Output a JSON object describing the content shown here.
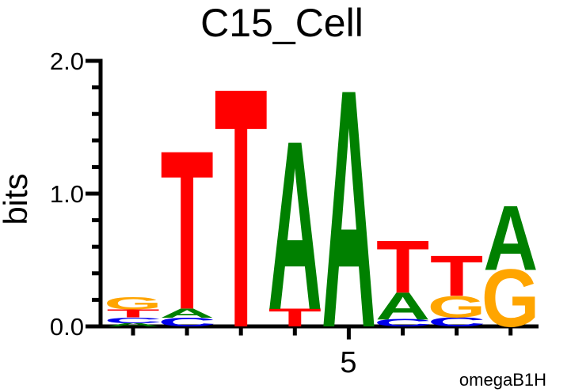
{
  "figure": {
    "title": "C15_Cell",
    "ylabel": "bits",
    "watermark": "omegaB1H",
    "x_tick_label": "5"
  },
  "chart_data": {
    "type": "sequence_logo",
    "title": "C15_Cell",
    "ylabel": "bits",
    "xlabel": "",
    "ylim": [
      0,
      2
    ],
    "yticks": [
      "0.0",
      "1.0",
      "2.0"
    ],
    "ytick_values": [
      0,
      1,
      2
    ],
    "minor_ytick_step_bits": 0.2,
    "labeled_x_position": 5,
    "x_tick_label": "5",
    "num_positions": 8,
    "watermark": "omegaB1H",
    "grid": false,
    "colors": {
      "A": "#008000",
      "C": "#0000EE",
      "G": "#FFA500",
      "T": "#FF0000"
    },
    "positions": [
      {
        "index": 1,
        "stack": [
          [
            "A",
            0.025
          ],
          [
            "C",
            0.042
          ],
          [
            "T",
            0.062
          ],
          [
            "G",
            0.092
          ]
        ]
      },
      {
        "index": 2,
        "stack": [
          [
            "C",
            0.066
          ],
          [
            "A",
            0.069
          ],
          [
            "T",
            1.18
          ]
        ]
      },
      {
        "index": 3,
        "stack": [
          [
            "T",
            1.78
          ]
        ]
      },
      {
        "index": 4,
        "stack": [
          [
            "T",
            0.132
          ],
          [
            "A",
            1.255
          ]
        ]
      },
      {
        "index": 5,
        "stack": [
          [
            "A",
            1.77
          ]
        ]
      },
      {
        "index": 6,
        "stack": [
          [
            "C",
            0.055
          ],
          [
            "A",
            0.2
          ],
          [
            "T",
            0.39
          ]
        ]
      },
      {
        "index": 7,
        "stack": [
          [
            "C",
            0.068
          ],
          [
            "G",
            0.16
          ],
          [
            "T",
            0.3
          ]
        ]
      },
      {
        "index": 8,
        "stack": [
          [
            "G",
            0.427
          ],
          [
            "A",
            0.48
          ]
        ]
      }
    ]
  }
}
